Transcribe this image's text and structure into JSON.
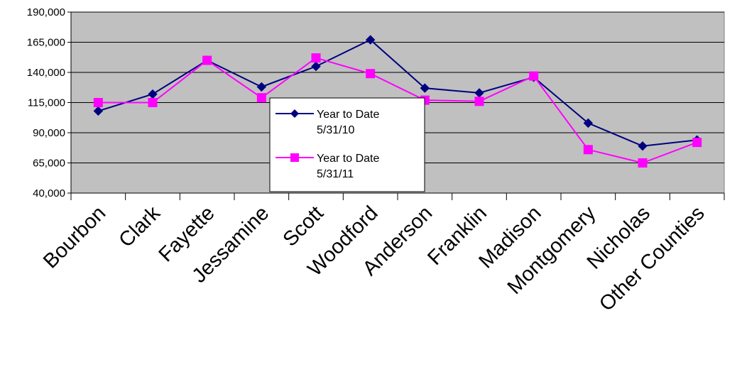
{
  "chart_data": {
    "type": "line",
    "title": "",
    "xlabel": "",
    "ylabel": "",
    "categories": [
      "Bourbon",
      "Clark",
      "Fayette",
      "Jessamine",
      "Scott",
      "Woodford",
      "Anderson",
      "Franklin",
      "Madison",
      "Montgomery",
      "Nicholas",
      "Other Counties"
    ],
    "yticks": [
      "40,000",
      "65,000",
      "90,000",
      "115,000",
      "140,000",
      "165,000",
      "190,000"
    ],
    "ylim": [
      40000,
      190000
    ],
    "grid": true,
    "legend_position": "center",
    "plot_background": "#c0c0c0",
    "series": [
      {
        "name_lines": [
          "Year to Date",
          "5/31/10"
        ],
        "color": "#000080",
        "marker": "diamond",
        "values": [
          108000,
          122000,
          150000,
          128000,
          145000,
          167000,
          127000,
          123000,
          136000,
          98000,
          79000,
          84000
        ]
      },
      {
        "name_lines": [
          "Year to Date",
          "5/31/11"
        ],
        "color": "#ff00ff",
        "marker": "square",
        "values": [
          115000,
          115000,
          150000,
          119000,
          152000,
          139000,
          117000,
          116000,
          137000,
          76000,
          65000,
          82000
        ]
      }
    ]
  }
}
